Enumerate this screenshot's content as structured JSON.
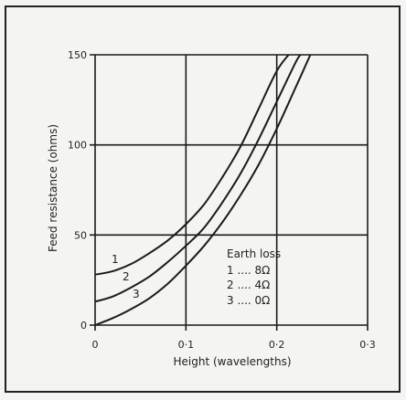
{
  "chart_data": {
    "type": "line",
    "title": "",
    "xlabel": "Height (wavelengths)",
    "ylabel": "Feed resistance (ohms)",
    "xlim": [
      0,
      0.3
    ],
    "ylim": [
      0,
      150
    ],
    "x_ticks": [
      0,
      0.1,
      0.2,
      0.3
    ],
    "x_tick_labels": [
      "0",
      "0·1",
      "0·2",
      "0·3"
    ],
    "y_ticks": [
      0,
      50,
      100,
      150
    ],
    "y_tick_labels": [
      "0",
      "50",
      "100",
      "150"
    ],
    "grid": true,
    "series": [
      {
        "name": "1",
        "x": [
          0,
          0.02,
          0.04,
          0.06,
          0.08,
          0.1,
          0.12,
          0.14,
          0.16,
          0.18,
          0.2,
          0.213
        ],
        "y": [
          28,
          30,
          34,
          40,
          47,
          56,
          67,
          82,
          99,
          120,
          141,
          150
        ]
      },
      {
        "name": "2",
        "x": [
          0,
          0.02,
          0.04,
          0.06,
          0.08,
          0.1,
          0.12,
          0.14,
          0.16,
          0.18,
          0.2,
          0.22,
          0.226
        ],
        "y": [
          13,
          16,
          21,
          27,
          35,
          44,
          54,
          68,
          84,
          103,
          124,
          145,
          150
        ]
      },
      {
        "name": "3",
        "x": [
          0,
          0.02,
          0.04,
          0.06,
          0.08,
          0.1,
          0.12,
          0.14,
          0.16,
          0.18,
          0.2,
          0.22,
          0.237
        ],
        "y": [
          0,
          4,
          9,
          15,
          23,
          33,
          44,
          57,
          72,
          89,
          109,
          131,
          150
        ]
      }
    ],
    "legend": {
      "title": "Earth loss",
      "entries": [
        "1 .... 8Ω",
        "2 .... 4Ω",
        "3 .... 0Ω"
      ]
    }
  }
}
